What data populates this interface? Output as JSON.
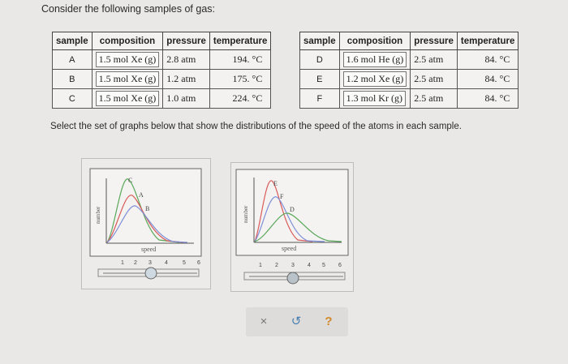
{
  "prompt": "Consider the following samples of gas:",
  "instructions": "Select the set of graphs below that show the distributions of the speed of the atoms in each sample.",
  "table_headers": [
    "sample",
    "composition",
    "pressure",
    "temperature"
  ],
  "samples_left": [
    {
      "label": "A",
      "composition": "1.5 mol Xe (g)",
      "pressure": "2.8 atm",
      "temperature": "194. °C"
    },
    {
      "label": "B",
      "composition": "1.5 mol Xe (g)",
      "pressure": "1.2 atm",
      "temperature": "175. °C"
    },
    {
      "label": "C",
      "composition": "1.5 mol Xe (g)",
      "pressure": "1.0 atm",
      "temperature": "224. °C"
    }
  ],
  "samples_right": [
    {
      "label": "D",
      "composition": "1.6 mol He (g)",
      "pressure": "2.5 atm",
      "temperature": "84. °C"
    },
    {
      "label": "E",
      "composition": "1.2 mol Xe (g)",
      "pressure": "2.5 atm",
      "temperature": "84. °C"
    },
    {
      "label": "F",
      "composition": "1.3 mol Kr (g)",
      "pressure": "2.5 atm",
      "temperature": "84. °C"
    }
  ],
  "graph_1": {
    "ylabel": "number",
    "xlabel": "speed",
    "curve_labels": [
      "C",
      "A",
      "B"
    ],
    "scale_ticks": [
      "1",
      "2",
      "3",
      "4",
      "5",
      "6"
    ]
  },
  "graph_2": {
    "ylabel": "number",
    "xlabel": "speed",
    "curve_labels": [
      "E",
      "F",
      "D"
    ],
    "scale_ticks": [
      "1",
      "2",
      "3",
      "4",
      "5",
      "6"
    ]
  },
  "colors": {
    "curve_red": "#d95a5a",
    "curve_green": "#5aa85a",
    "curve_blue": "#7f8fd8",
    "background": "#e9e8e6",
    "selected_radio": "#cfd9e2"
  },
  "toolbar": {
    "clear_icon": "×",
    "undo_icon": "↺",
    "help_icon": "?"
  }
}
